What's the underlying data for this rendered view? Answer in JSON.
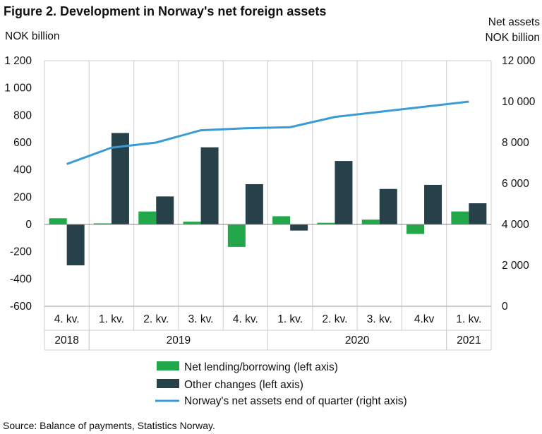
{
  "title": "Figure 2. Development in Norway's net foreign assets",
  "left_unit": "NOK billion",
  "right_unit_line1": "Net assets",
  "right_unit_line2": "NOK billion",
  "source": "Source: Balance of payments, Statistics Norway.",
  "colors": {
    "net_lending": "#22a84a",
    "other_changes": "#27414a",
    "net_assets": "#3a9bd6",
    "grid": "#cccccc"
  },
  "chart_data": {
    "type": "bar",
    "categories": [
      "4. kv.",
      "1. kv.",
      "2. kv.",
      "3. kv.",
      "4. kv.",
      "1. kv.",
      "2. kv.",
      "3. kv.",
      "4.kv",
      "1. kv."
    ],
    "years": [
      {
        "label": "2018",
        "start": 0,
        "end": 0
      },
      {
        "label": "2019",
        "start": 1,
        "end": 4
      },
      {
        "label": "2020",
        "start": 5,
        "end": 8
      },
      {
        "label": "2021",
        "start": 9,
        "end": 9
      }
    ],
    "y_left": {
      "min": -600,
      "max": 1200,
      "step": 200,
      "tick_labels": [
        "-600",
        "-400",
        "-200",
        "0",
        "200",
        "400",
        "600",
        "800",
        "1 000",
        "1 200"
      ]
    },
    "y_right": {
      "min": 0,
      "max": 12000,
      "step": 2000,
      "tick_labels": [
        "0",
        "2 000",
        "4 000",
        "6 000",
        "8 000",
        "10 000",
        "12 000"
      ]
    },
    "series": [
      {
        "name": "Net lending/borrowing (left axis)",
        "kind": "bar",
        "axis": "left",
        "values": [
          45,
          8,
          95,
          20,
          -165,
          60,
          12,
          35,
          -70,
          95
        ]
      },
      {
        "name": "Other changes (left axis)",
        "kind": "bar",
        "axis": "left",
        "values": [
          -300,
          670,
          205,
          565,
          295,
          -45,
          465,
          260,
          290,
          155
        ]
      },
      {
        "name": "Norway's net assets end of quarter (right axis)",
        "kind": "line",
        "axis": "right",
        "values": [
          6950,
          7750,
          8000,
          8600,
          8700,
          8750,
          9250,
          9500,
          9750,
          10000
        ]
      }
    ],
    "grid": "vertical"
  }
}
